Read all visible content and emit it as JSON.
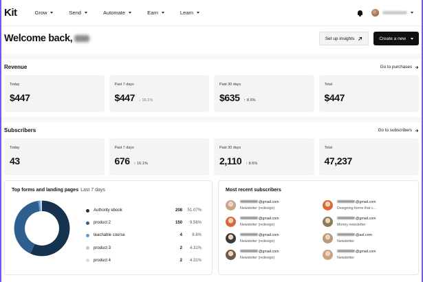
{
  "brand": {
    "logo": "Kit"
  },
  "nav": [
    {
      "label": "Grow"
    },
    {
      "label": "Send"
    },
    {
      "label": "Automate"
    },
    {
      "label": "Earn"
    },
    {
      "label": "Learn"
    }
  ],
  "header": {
    "welcome": "Welcome back,",
    "setup_label": "Set up insights",
    "create_label": "Create a new"
  },
  "revenue": {
    "title": "Revenue",
    "link": "Go to purchases",
    "cards": [
      {
        "label": "Today",
        "value": "$447",
        "change": ""
      },
      {
        "label": "Past 7 days",
        "value": "$447",
        "change": "↓ 16.1%"
      },
      {
        "label": "Past 30 days",
        "value": "$635",
        "change": "↑ 8.6%"
      },
      {
        "label": "Total",
        "value": "$447",
        "change": ""
      }
    ]
  },
  "subscribers": {
    "title": "Subscribers",
    "link": "Go to subscribers",
    "cards": [
      {
        "label": "Today",
        "value": "43",
        "change": ""
      },
      {
        "label": "Past 7 days",
        "value": "676",
        "change": "↑ 16.1%"
      },
      {
        "label": "Past 30 days",
        "value": "2,110",
        "change": "↑ 8.6%"
      },
      {
        "label": "Total",
        "value": "47,237",
        "change": ""
      }
    ]
  },
  "forms": {
    "title": "Top forms and landing pages",
    "period": "Last 7 days",
    "items": [
      {
        "name": "Authority ebook",
        "count": "208",
        "pct": "51.07%",
        "color": "#15324f"
      },
      {
        "name": "product 2",
        "count": "150",
        "pct": "9.56%",
        "color": "#2e5f8f"
      },
      {
        "name": "teachable course",
        "count": "4",
        "pct": "8.6%",
        "color": "#5e9bd1"
      },
      {
        "name": "product 3",
        "count": "2",
        "pct": "4.31%",
        "color": "#a9cde9"
      },
      {
        "name": "product 4",
        "count": "2",
        "pct": "4.31%",
        "color": "#c9e0f2"
      }
    ]
  },
  "recent": {
    "title": "Most recent subscribers",
    "items": [
      {
        "email": "@gmail.com",
        "form": "Newsletter (redesign)",
        "avatar": "#c7a48a"
      },
      {
        "email": "@gmail.com",
        "form": "Designing forms that c...",
        "avatar": "#d86a3a"
      },
      {
        "email": "@gmail.com",
        "form": "Newsletter (redesign)",
        "avatar": "#d86a3a"
      },
      {
        "email": "@gmail.com",
        "form": "Money newsletter",
        "avatar": "#8b7b5e"
      },
      {
        "email": "@gmail.com",
        "form": "Newsletter (redesign)",
        "avatar": "#3a3a3a"
      },
      {
        "email": "@aol.com",
        "form": "Newsletter",
        "avatar": "#b99a7c"
      },
      {
        "email": "@gmail.com",
        "form": "Newsletter (redesign)",
        "avatar": "#6b5a4a"
      },
      {
        "email": "@gmail.com",
        "form": "Newsletter",
        "avatar": "#caa27e"
      }
    ]
  }
}
